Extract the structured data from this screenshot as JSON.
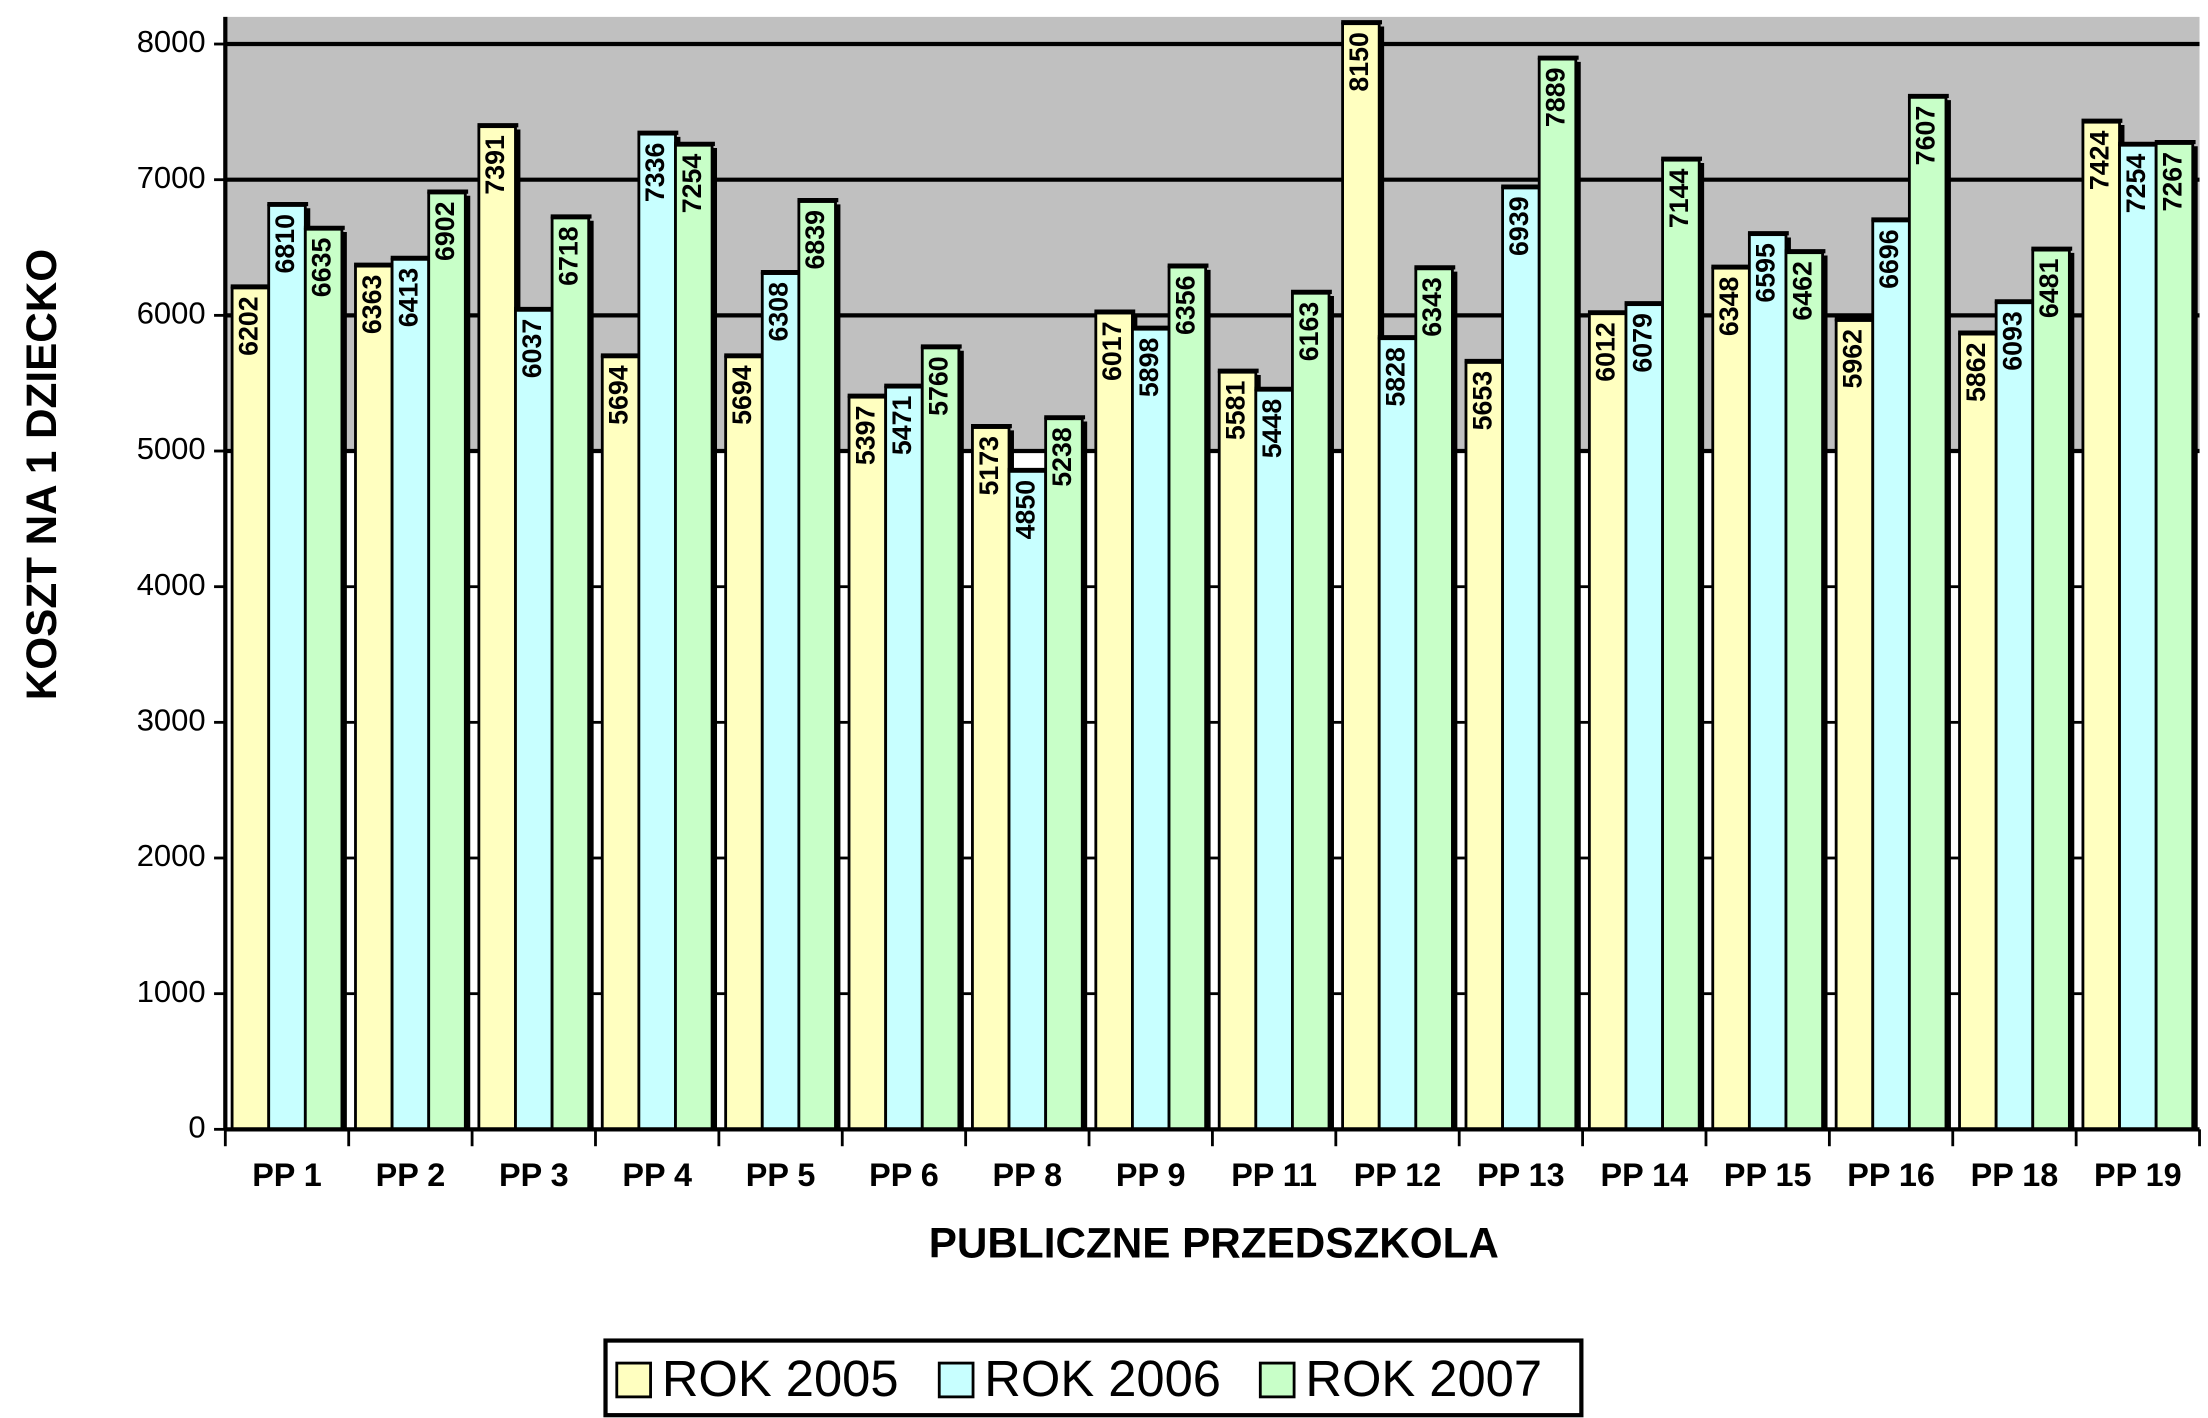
{
  "chart_data": {
    "type": "bar",
    "x_label": "PUBLICZNE PRZEDSZKOLA",
    "y_label": "KOSZT NA 1 DZIECKO",
    "categories": [
      "PP 1",
      "PP 2",
      "PP 3",
      "PP 4",
      "PP 5",
      "PP 6",
      "PP 8",
      "PP 9",
      "PP 11",
      "PP 12",
      "PP 13",
      "PP 14",
      "PP 15",
      "PP 16",
      "PP 18",
      "PP 19"
    ],
    "series": [
      {
        "name": "ROK 2005",
        "color": "#ffffc0",
        "values": [
          6202,
          6363,
          7391,
          5694,
          5694,
          5397,
          5173,
          6017,
          5581,
          8150,
          5653,
          6012,
          6348,
          5962,
          5862,
          7424
        ]
      },
      {
        "name": "ROK 2006",
        "color": "#c8ffff",
        "values": [
          6810,
          6413,
          6037,
          7336,
          6308,
          5471,
          4850,
          5898,
          5448,
          5828,
          6939,
          6079,
          6595,
          6696,
          6093,
          7254
        ]
      },
      {
        "name": "ROK 2007",
        "color": "#c8ffc8",
        "values": [
          6635,
          6902,
          6718,
          7254,
          6839,
          5760,
          5238,
          6356,
          6163,
          6343,
          7889,
          7144,
          6462,
          7607,
          6481,
          7267
        ]
      }
    ],
    "ylim": [
      0,
      8200
    ],
    "yticks": [
      0,
      1000,
      2000,
      3000,
      4000,
      5000,
      6000,
      7000,
      8000
    ],
    "grid": true,
    "legend": "bottom"
  }
}
